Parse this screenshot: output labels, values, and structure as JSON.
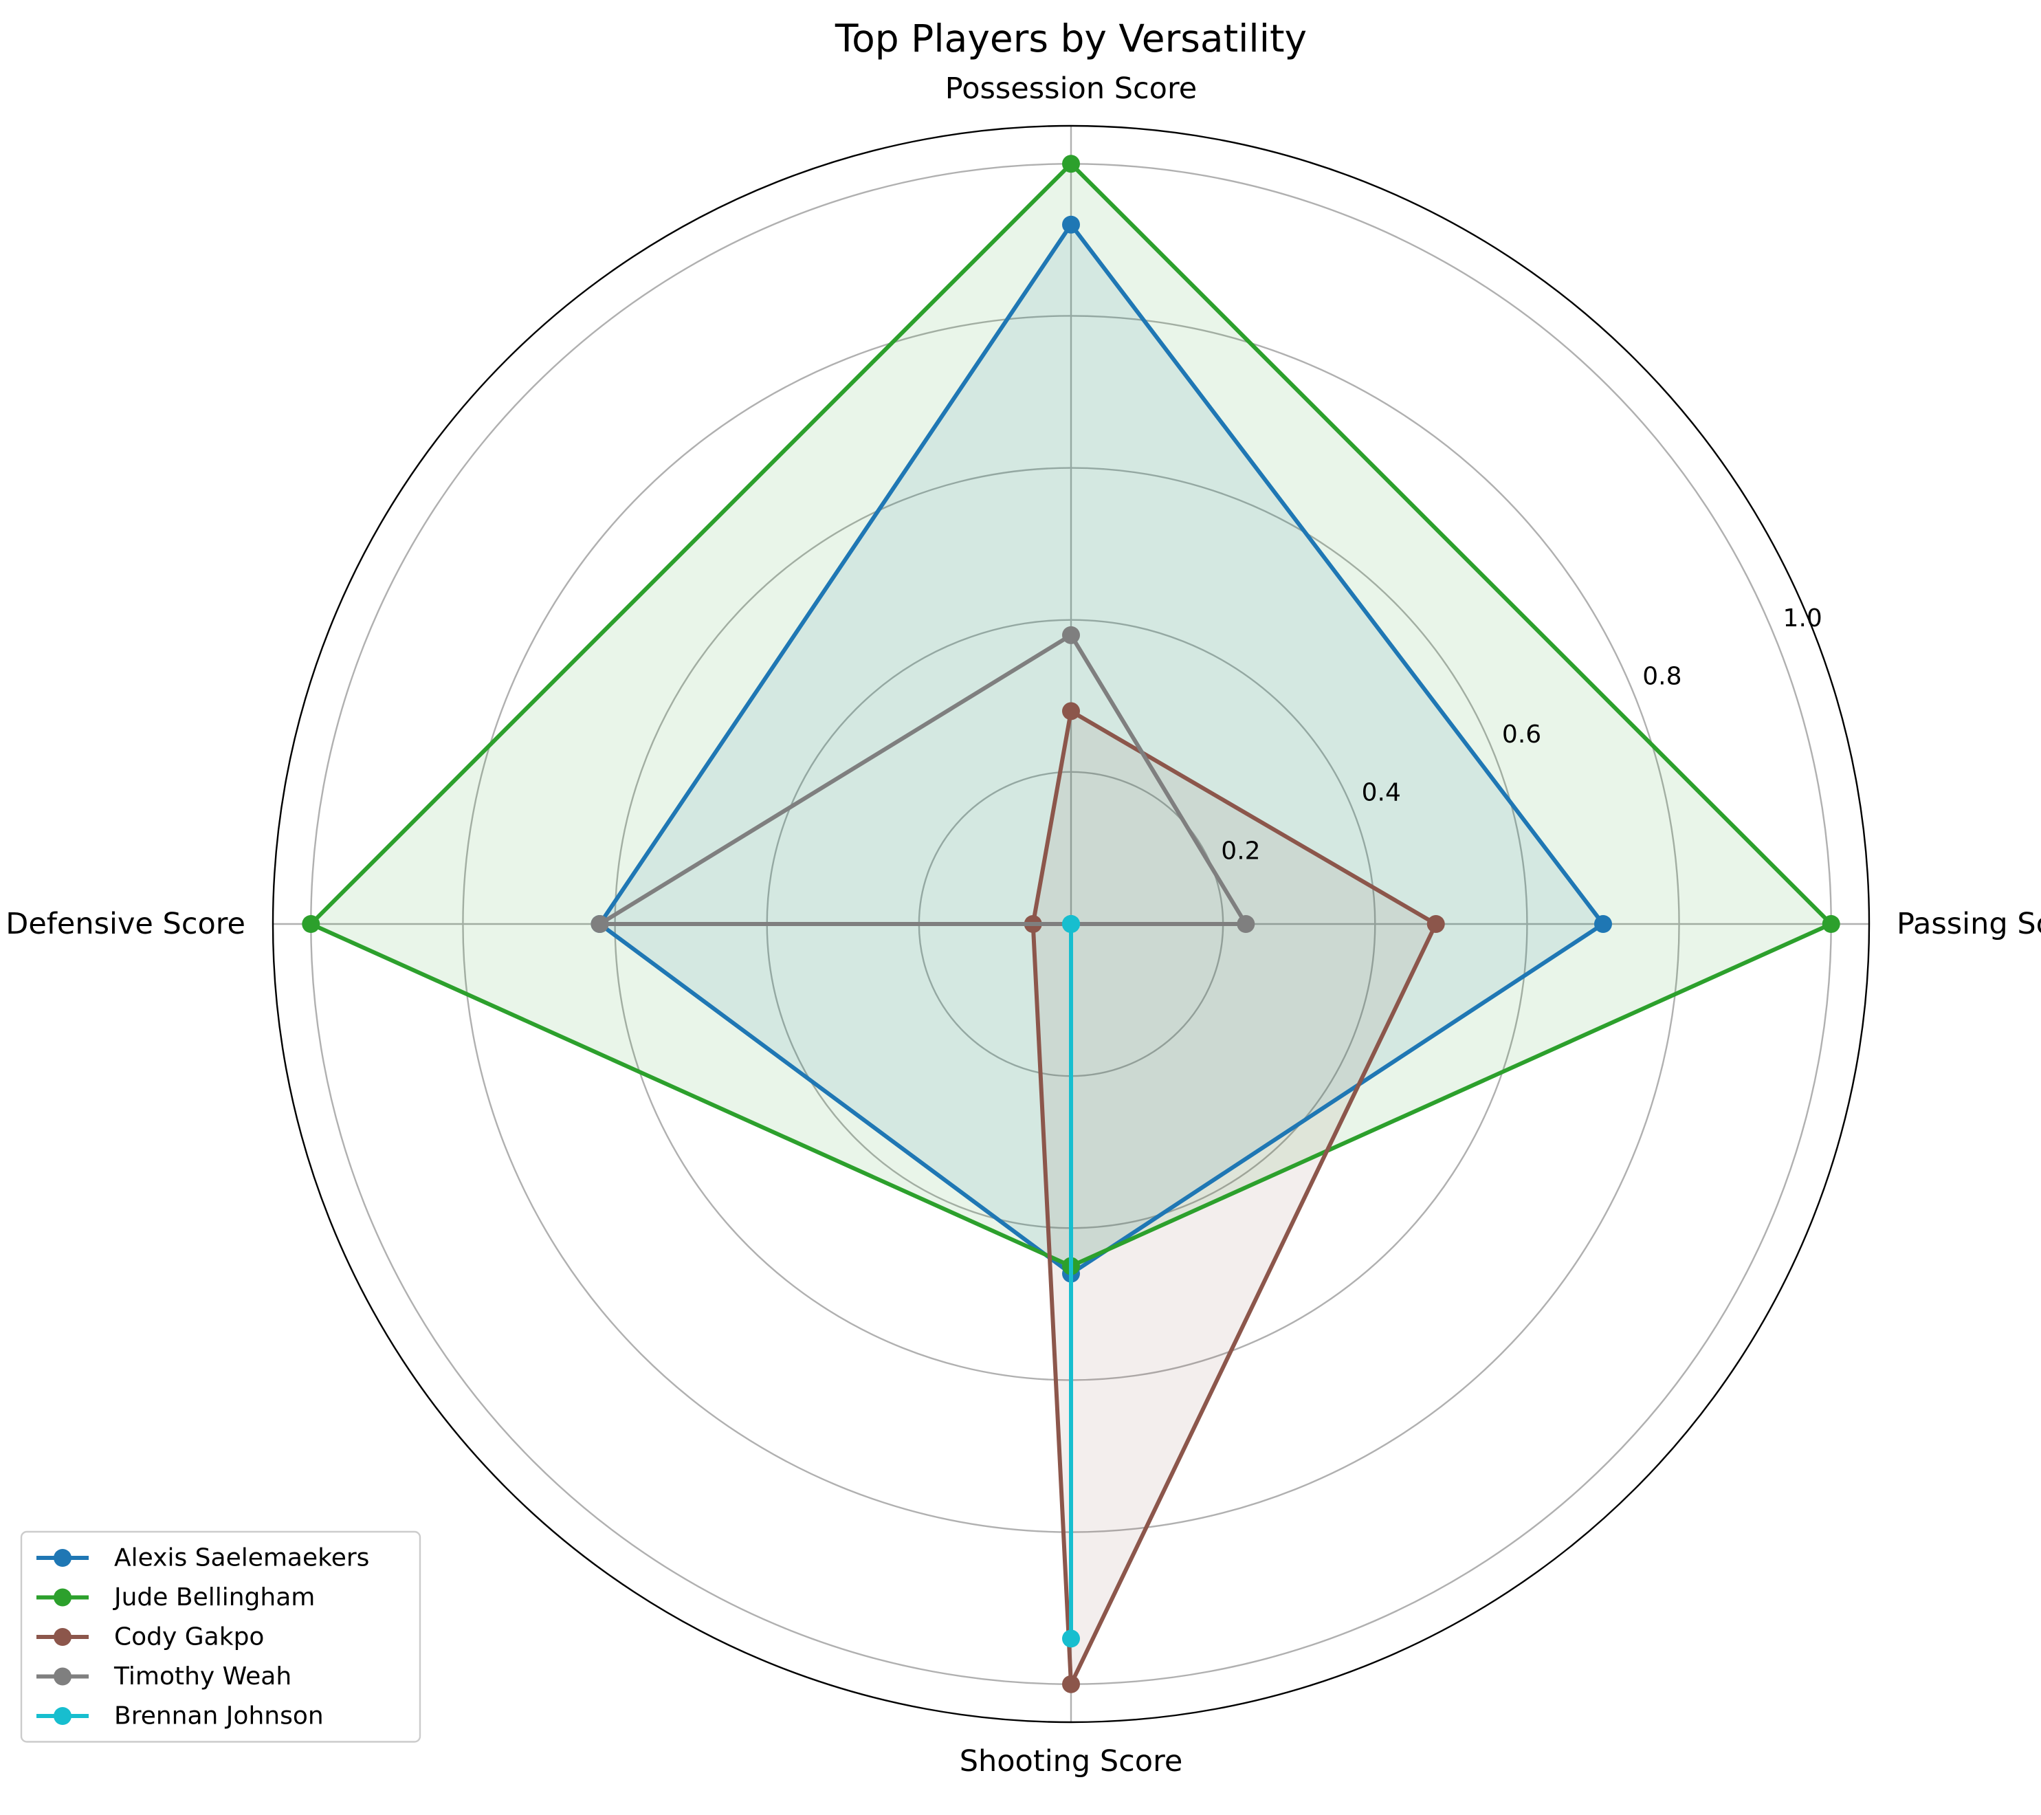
{
  "chart_data": {
    "type": "radar",
    "title": "Top Players by Versatility",
    "axes": [
      "Passing Score",
      "Possession Score",
      "Defensive Score",
      "Shooting Score"
    ],
    "rlim": [
      0,
      1.05
    ],
    "rticks": [
      0.2,
      0.4,
      0.6,
      0.8,
      1.0
    ],
    "rtick_labels": [
      "0.2",
      "0.4",
      "0.6",
      "0.8",
      "1.0"
    ],
    "grid": true,
    "legend_position": "lower-left",
    "series": [
      {
        "name": "Alexis Saelemaekers",
        "color": "#1f77b4",
        "values": [
          0.7,
          0.92,
          0.62,
          0.46
        ],
        "fill": true
      },
      {
        "name": "Jude Bellingham",
        "color": "#2ca02c",
        "values": [
          1.0,
          1.0,
          1.0,
          0.45
        ],
        "fill": true
      },
      {
        "name": "Cody Gakpo",
        "color": "#8c564b",
        "values": [
          0.48,
          0.28,
          0.05,
          1.0
        ],
        "fill": true
      },
      {
        "name": "Timothy Weah",
        "color": "#7f7f7f",
        "values": [
          0.23,
          0.38,
          0.62,
          0.0
        ],
        "fill": false
      },
      {
        "name": "Brennan Johnson",
        "color": "#17becf",
        "values": [
          0.0,
          0.0,
          0.0,
          0.94
        ],
        "fill": false
      }
    ]
  }
}
